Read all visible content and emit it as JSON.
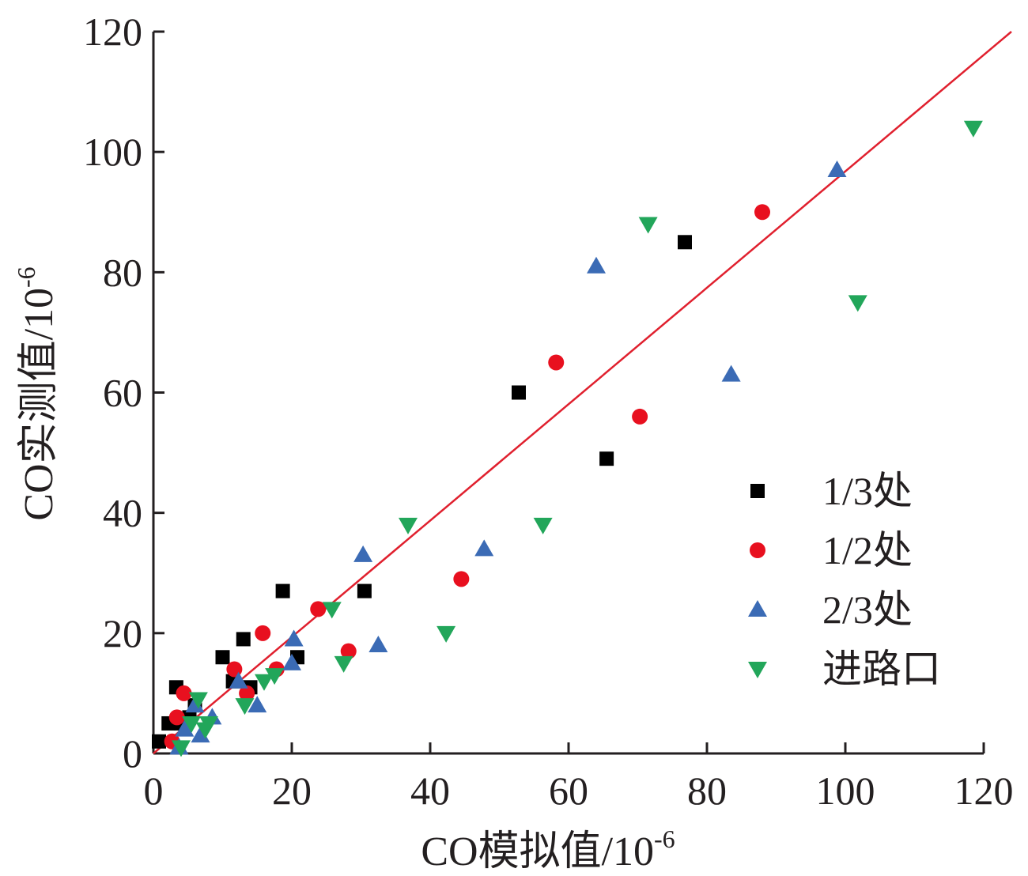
{
  "chart_data": {
    "type": "scatter",
    "xlabel_main": "CO模拟值/10",
    "xlabel_sup": "-6",
    "ylabel_main": "CO实测值/10",
    "ylabel_sup": "-6",
    "xlim": [
      0,
      120
    ],
    "ylim": [
      0,
      120
    ],
    "xticks": [
      "0",
      "20",
      "40",
      "60",
      "80",
      "100",
      "120"
    ],
    "yticks": [
      "0",
      "20",
      "40",
      "60",
      "80",
      "100",
      "120"
    ],
    "grid": false,
    "legend_position": "bottom-right",
    "fit_line": {
      "x": [
        0,
        124
      ],
      "y": [
        0,
        120
      ],
      "color": "#e0202e"
    },
    "series": [
      {
        "name": "1/3处",
        "marker": "square",
        "color": "#000000",
        "points": [
          [
            0.8,
            2
          ],
          [
            2.2,
            5
          ],
          [
            3.3,
            11
          ],
          [
            4,
            5
          ],
          [
            5.2,
            6
          ],
          [
            6,
            8
          ],
          [
            10,
            16
          ],
          [
            11.5,
            12
          ],
          [
            13,
            19
          ],
          [
            14,
            11
          ],
          [
            18.7,
            27
          ],
          [
            20.8,
            16
          ],
          [
            30.5,
            27
          ],
          [
            52.8,
            60
          ],
          [
            65.5,
            49
          ],
          [
            76.8,
            85
          ]
        ]
      },
      {
        "name": "1/2处",
        "marker": "circle",
        "color": "#e8101f",
        "points": [
          [
            2.7,
            2
          ],
          [
            3.4,
            6
          ],
          [
            4.4,
            10
          ],
          [
            11.7,
            14
          ],
          [
            13.5,
            10
          ],
          [
            15.8,
            20
          ],
          [
            17.8,
            14
          ],
          [
            23.8,
            24
          ],
          [
            28.2,
            17
          ],
          [
            44.5,
            29
          ],
          [
            58.2,
            65
          ],
          [
            70.3,
            56
          ],
          [
            88,
            90
          ]
        ]
      },
      {
        "name": "2/3处",
        "marker": "triangle-up",
        "color": "#3b6bb5",
        "points": [
          [
            3.7,
            1
          ],
          [
            4.5,
            4
          ],
          [
            6,
            8
          ],
          [
            6.8,
            3
          ],
          [
            8.5,
            6
          ],
          [
            12.3,
            12
          ],
          [
            15,
            8
          ],
          [
            20,
            15
          ],
          [
            20.3,
            19
          ],
          [
            30.3,
            33
          ],
          [
            32.5,
            18
          ],
          [
            47.8,
            34
          ],
          [
            64,
            81
          ],
          [
            83.5,
            63
          ],
          [
            98.8,
            97
          ]
        ]
      },
      {
        "name": "进路口",
        "marker": "triangle-down",
        "color": "#22a65a",
        "points": [
          [
            4,
            1
          ],
          [
            5.5,
            5
          ],
          [
            6.5,
            9
          ],
          [
            7.5,
            4
          ],
          [
            8,
            5
          ],
          [
            13.2,
            8
          ],
          [
            16,
            12
          ],
          [
            17.5,
            13
          ],
          [
            25.8,
            24
          ],
          [
            27.5,
            15
          ],
          [
            36.8,
            38
          ],
          [
            42.3,
            20
          ],
          [
            56.3,
            38
          ],
          [
            71.5,
            88
          ],
          [
            101.8,
            75
          ],
          [
            118.5,
            104
          ]
        ]
      }
    ]
  }
}
